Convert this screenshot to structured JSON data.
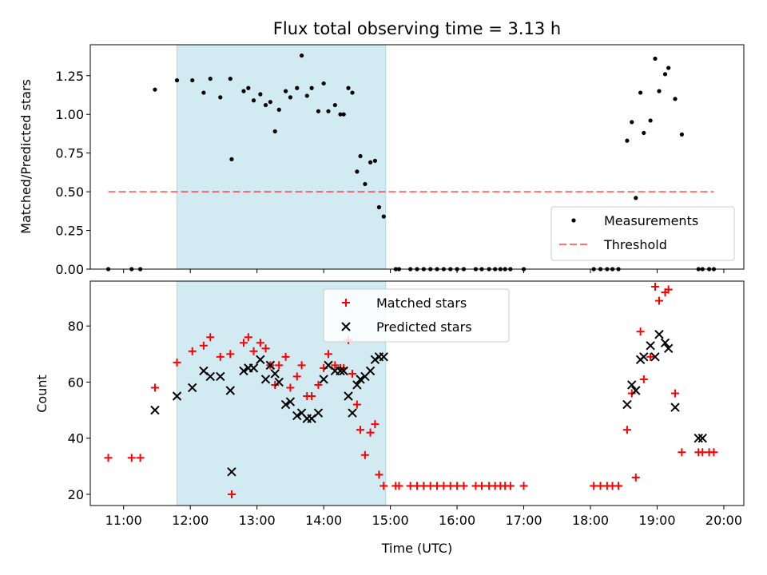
{
  "title": "Flux total observing time = 3.13 h",
  "colors": {
    "shade": "#add8e6",
    "threshold": "#ff0000",
    "matched": "#ff0000",
    "predicted": "#000000",
    "measurement": "#000000"
  },
  "chart_data": [
    {
      "type": "scatter",
      "ylabel": "Matched/Predicted stars",
      "xlim": [
        10.5,
        20.3
      ],
      "ylim": [
        0,
        1.45
      ],
      "yticks": [
        "0.00",
        "0.25",
        "0.50",
        "0.75",
        "1.00",
        "1.25"
      ],
      "shaded_span": [
        11.8,
        14.93
      ],
      "legend_position": "lower right",
      "series": [
        {
          "name": "Measurements",
          "kind": "scatter",
          "x": [
            10.77,
            11.12,
            11.25,
            11.47,
            11.8,
            12.03,
            12.2,
            12.3,
            12.45,
            12.6,
            12.62,
            12.8,
            12.87,
            12.95,
            13.05,
            13.13,
            13.2,
            13.27,
            13.33,
            13.43,
            13.5,
            13.6,
            13.67,
            13.75,
            13.82,
            13.92,
            14.0,
            14.07,
            14.17,
            14.25,
            14.3,
            14.37,
            14.43,
            14.5,
            14.55,
            14.62,
            14.7,
            14.77,
            14.83,
            14.9,
            15.08,
            15.13,
            15.3,
            15.4,
            15.5,
            15.6,
            15.7,
            15.8,
            15.9,
            16.0,
            16.1,
            16.28,
            16.37,
            16.48,
            16.57,
            16.65,
            16.72,
            16.8,
            17.0,
            18.05,
            18.15,
            18.25,
            18.33,
            18.42,
            18.55,
            18.62,
            18.68,
            18.75,
            18.8,
            18.9,
            18.97,
            19.03,
            19.12,
            19.17,
            19.27,
            19.37,
            19.62,
            19.68,
            19.78,
            19.85
          ],
          "values": [
            0.0,
            0.0,
            0.0,
            1.16,
            1.22,
            1.22,
            1.14,
            1.23,
            1.11,
            1.23,
            0.71,
            1.15,
            1.17,
            1.09,
            1.13,
            1.06,
            1.08,
            0.89,
            1.03,
            1.15,
            1.11,
            1.17,
            1.38,
            1.12,
            1.17,
            1.02,
            1.2,
            1.02,
            1.06,
            1.0,
            1.0,
            1.17,
            1.14,
            0.63,
            0.73,
            0.55,
            0.69,
            0.7,
            0.4,
            0.34,
            0.0,
            0.0,
            0.0,
            0.0,
            0.0,
            0.0,
            0.0,
            0.0,
            0.0,
            0.0,
            0.0,
            0.0,
            0.0,
            0.0,
            0.0,
            0.0,
            0.0,
            0.0,
            0.0,
            0.0,
            0.0,
            0.0,
            0.0,
            0.0,
            0.83,
            0.95,
            0.46,
            1.14,
            0.88,
            0.96,
            1.36,
            1.15,
            1.26,
            1.3,
            1.1,
            0.87,
            0.0,
            0.0,
            0.0,
            0.0
          ]
        },
        {
          "name": "Threshold",
          "kind": "line",
          "x": [
            10.77,
            19.85
          ],
          "values": [
            0.5,
            0.5
          ]
        }
      ]
    },
    {
      "type": "scatter",
      "xlabel": "Time (UTC)",
      "ylabel": "Count",
      "xlim": [
        10.5,
        20.3
      ],
      "ylim": [
        16,
        96
      ],
      "yticks": [
        "20",
        "40",
        "60",
        "80"
      ],
      "xticks": [
        "11:00",
        "12:00",
        "13:00",
        "14:00",
        "15:00",
        "16:00",
        "17:00",
        "18:00",
        "19:00",
        "20:00"
      ],
      "shaded_span": [
        11.8,
        14.93
      ],
      "legend_position": "upper center",
      "series": [
        {
          "name": "Matched stars",
          "kind": "plus",
          "x": [
            10.77,
            11.12,
            11.25,
            11.47,
            11.8,
            12.03,
            12.2,
            12.3,
            12.45,
            12.6,
            12.62,
            12.8,
            12.87,
            12.95,
            13.05,
            13.13,
            13.2,
            13.27,
            13.33,
            13.43,
            13.5,
            13.6,
            13.67,
            13.75,
            13.82,
            13.92,
            14.0,
            14.07,
            14.17,
            14.25,
            14.3,
            14.37,
            14.43,
            14.5,
            14.55,
            14.62,
            14.7,
            14.77,
            14.83,
            14.9,
            15.08,
            15.13,
            15.3,
            15.4,
            15.5,
            15.6,
            15.7,
            15.8,
            15.9,
            16.0,
            16.1,
            16.28,
            16.37,
            16.48,
            16.57,
            16.65,
            16.72,
            16.8,
            17.0,
            18.05,
            18.15,
            18.25,
            18.33,
            18.42,
            18.55,
            18.62,
            18.68,
            18.75,
            18.8,
            18.9,
            18.97,
            19.03,
            19.12,
            19.17,
            19.27,
            19.37,
            19.62,
            19.68,
            19.78,
            19.85
          ],
          "values": [
            33,
            33,
            33,
            58,
            67,
            71,
            73,
            76,
            69,
            70,
            20,
            74,
            76,
            71,
            74,
            72,
            66,
            59,
            66,
            69,
            58,
            62,
            66,
            55,
            55,
            59,
            65,
            70,
            66,
            65,
            65,
            75,
            63,
            52,
            43,
            34,
            42,
            45,
            27,
            23,
            23,
            23,
            23,
            23,
            23,
            23,
            23,
            23,
            23,
            23,
            23,
            23,
            23,
            23,
            23,
            23,
            23,
            23,
            23,
            23,
            23,
            23,
            23,
            23,
            43,
            56,
            26,
            78,
            61,
            69,
            94,
            89,
            92,
            93,
            56,
            35,
            35,
            35,
            35,
            35
          ]
        },
        {
          "name": "Predicted stars",
          "kind": "x",
          "x": [
            11.47,
            11.8,
            12.03,
            12.2,
            12.3,
            12.45,
            12.6,
            12.62,
            12.8,
            12.87,
            12.95,
            13.05,
            13.13,
            13.2,
            13.27,
            13.33,
            13.43,
            13.5,
            13.6,
            13.67,
            13.75,
            13.82,
            13.92,
            14.0,
            14.07,
            14.17,
            14.25,
            14.3,
            14.37,
            14.43,
            14.5,
            14.55,
            14.62,
            14.7,
            14.77,
            14.83,
            14.9,
            18.55,
            18.62,
            18.68,
            18.75,
            18.8,
            18.9,
            18.97,
            19.03,
            19.12,
            19.17,
            19.27,
            19.62,
            19.68
          ],
          "values": [
            50,
            55,
            58,
            64,
            62,
            62,
            57,
            28,
            64,
            65,
            65,
            68,
            61,
            66,
            63,
            60,
            52,
            53,
            48,
            49,
            47,
            47,
            49,
            61,
            66,
            64,
            64,
            64,
            55,
            49,
            59,
            61,
            62,
            64,
            68,
            69,
            69,
            52,
            59,
            57,
            68,
            69,
            73,
            69,
            77,
            74,
            72,
            51,
            40,
            40
          ]
        }
      ]
    }
  ]
}
